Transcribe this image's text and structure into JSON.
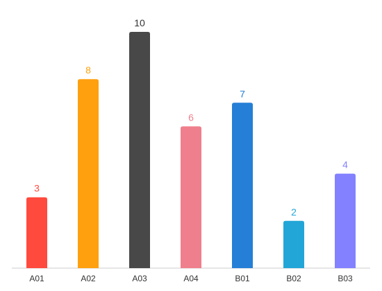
{
  "chart_data": {
    "type": "bar",
    "title": "",
    "xlabel": "",
    "ylabel": "",
    "grid": false,
    "legend": "none",
    "ylim": [
      0,
      10
    ],
    "categories": [
      "A01",
      "A02",
      "A03",
      "A04",
      "B01",
      "B02",
      "B03"
    ],
    "values": [
      3,
      8,
      10,
      6,
      7,
      2,
      4
    ],
    "colors": [
      "#ff4a3d",
      "#ffa00f",
      "#484848",
      "#ef7f8c",
      "#257fd6",
      "#22a6d7",
      "#8381ff"
    ],
    "value_label_colors": [
      "#ff4a3d",
      "#ffa00f",
      "#333333",
      "#ef7f8c",
      "#257fd6",
      "#22a6d7",
      "#8381ff"
    ],
    "axis_color": "#cccccc"
  }
}
